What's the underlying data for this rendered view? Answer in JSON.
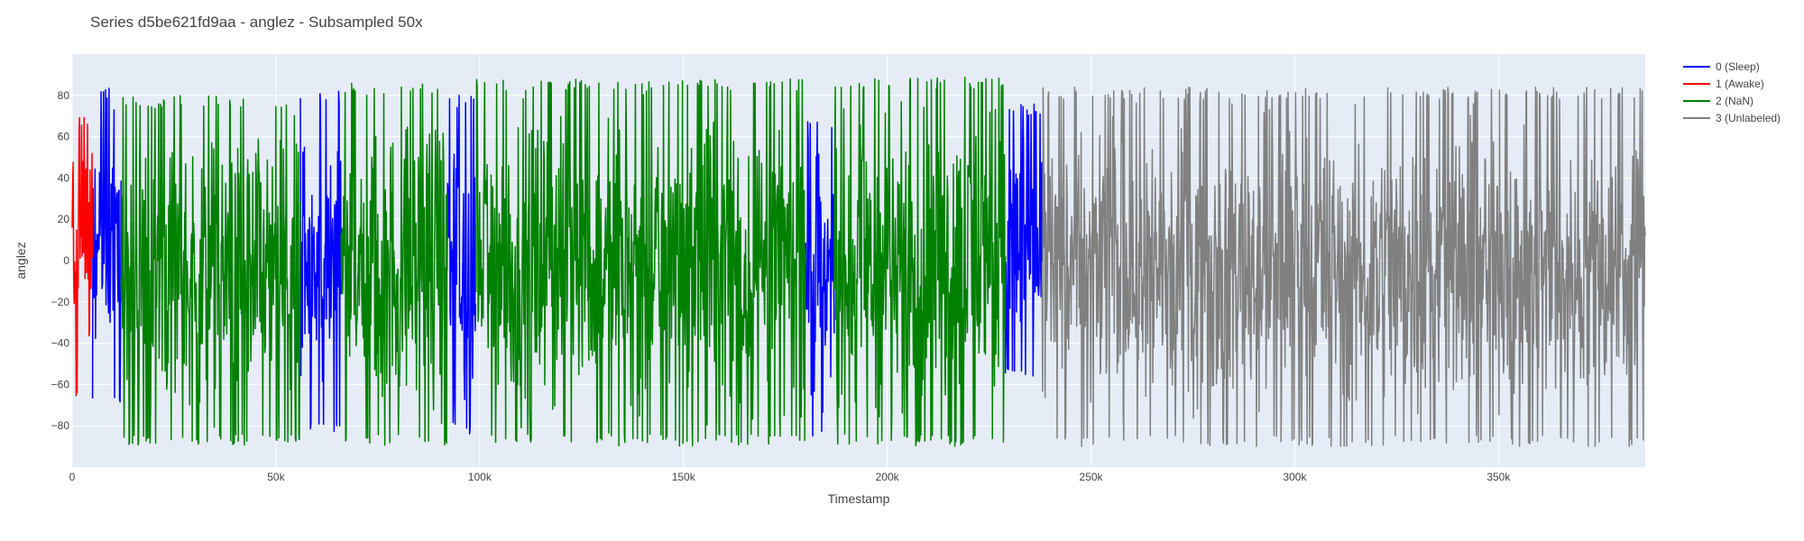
{
  "chart_data": {
    "type": "line",
    "title": "Series d5be621fd9aa - anglez - Subsampled 50x",
    "xlabel": "Timestamp",
    "ylabel": "anglez",
    "xlim": [
      0,
      386000
    ],
    "ylim": [
      -100,
      100
    ],
    "x_ticks": [
      0,
      50000,
      100000,
      150000,
      200000,
      250000,
      300000,
      350000
    ],
    "x_tick_labels": [
      "0",
      "50k",
      "100k",
      "150k",
      "200k",
      "250k",
      "300k",
      "350k"
    ],
    "y_ticks": [
      -80,
      -60,
      -40,
      -20,
      0,
      20,
      40,
      60,
      80
    ],
    "y_tick_labels": [
      "−80",
      "−60",
      "−40",
      "−20",
      "0",
      "20",
      "40",
      "60",
      "80"
    ],
    "grid": true,
    "legend_position": "top-right",
    "legend": [
      {
        "label": "0 (Sleep)",
        "color": "#0000ff"
      },
      {
        "label": "1 (Awake)",
        "color": "#ff0000"
      },
      {
        "label": "2 (NaN)",
        "color": "#008000"
      },
      {
        "label": "3 (Unlabeled)",
        "color": "#808080"
      }
    ],
    "series": [
      {
        "name": "0 (Sleep)",
        "color": "#0000ff",
        "segments": [
          {
            "x_start": 5000,
            "x_end": 12000,
            "y_min": -72,
            "y_max": 84
          },
          {
            "x_start": 56000,
            "x_end": 66000,
            "y_min": -84,
            "y_max": 82
          },
          {
            "x_start": 92000,
            "x_end": 99000,
            "y_min": -84,
            "y_max": 80
          },
          {
            "x_start": 180000,
            "x_end": 187000,
            "y_min": -86,
            "y_max": 70
          },
          {
            "x_start": 229000,
            "x_end": 238000,
            "y_min": -56,
            "y_max": 76
          }
        ]
      },
      {
        "name": "1 (Awake)",
        "color": "#ff0000",
        "segments": [
          {
            "x_start": 0,
            "x_end": 5000,
            "y_min": -68,
            "y_max": 70
          }
        ]
      },
      {
        "name": "2 (NaN)",
        "color": "#008000",
        "segments": [
          {
            "x_start": 12000,
            "x_end": 56000,
            "y_min": -90,
            "y_max": 80
          },
          {
            "x_start": 66000,
            "x_end": 92000,
            "y_min": -90,
            "y_max": 86
          },
          {
            "x_start": 99000,
            "x_end": 180000,
            "y_min": -90,
            "y_max": 88
          },
          {
            "x_start": 187000,
            "x_end": 229000,
            "y_min": -90,
            "y_max": 89
          }
        ]
      },
      {
        "name": "3 (Unlabeled)",
        "color": "#808080",
        "segments": [
          {
            "x_start": 238000,
            "x_end": 386000,
            "y_min": -90,
            "y_max": 84
          }
        ]
      }
    ]
  }
}
